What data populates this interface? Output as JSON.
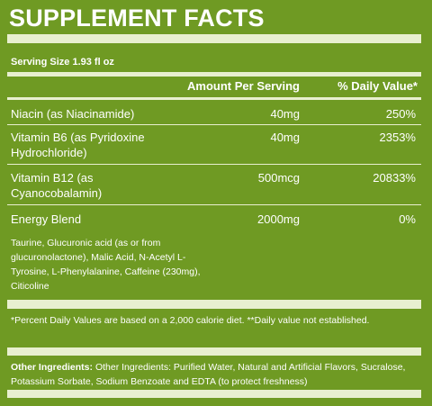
{
  "title": "SUPPLEMENT FACTS",
  "serving_size": "Serving Size 1.93 fl oz",
  "headers": {
    "amount": "Amount Per Serving",
    "dv": "% Daily Value*"
  },
  "rows": [
    {
      "name": "Niacin (as Niacinamide)",
      "amount": "40mg",
      "dv": "250%"
    },
    {
      "name": "Vitamin B6 (as Pyridoxine Hydrochloride)",
      "amount": "40mg",
      "dv": "2353%"
    },
    {
      "name": "Vitamin B12 (as Cyanocobalamin)",
      "amount": "500mcg",
      "dv": "20833%"
    },
    {
      "name": "Energy Blend",
      "amount": "2000mg",
      "dv": "0%"
    }
  ],
  "blend_ingredients": "Taurine, Glucuronic acid (as or from glucuronolactone), Malic Acid, N-Acetyl L-Tyrosine, L-Phenylalanine, Caffeine (230mg), Citicoline",
  "footnote": "*Percent Daily Values are based on a 2,000 calorie diet. **Daily value not established.",
  "other_ingredients_label": "Other Ingredients:",
  "other_ingredients": "Other Ingredients: Purified Water, Natural and Artificial Flavors, Sucralose, Potassium Sorbate, Sodium Benzoate and EDTA (to protect freshness)",
  "colors": {
    "background": "#6f9a23",
    "bar": "#e8efcf",
    "text": "#ffffff"
  }
}
